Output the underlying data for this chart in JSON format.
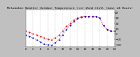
{
  "title": "Milwaukee Weather Outdoor Temperature (vs) Wind Chill (Last 24 Hours)",
  "title_fontsize": 3.2,
  "bg_color": "#c0c0c0",
  "plot_bg_color": "#ffffff",
  "grid_color": "#888888",
  "temp_color": "#ff0000",
  "windchill_color": "#0000cc",
  "ylim": [
    -25,
    45
  ],
  "ytick_right": [
    40,
    30,
    20,
    10,
    0,
    -10,
    -20
  ],
  "ylabel_fontsize": 3.0,
  "xlabel_fontsize": 2.8,
  "hours": [
    0,
    1,
    2,
    3,
    4,
    5,
    6,
    7,
    8,
    9,
    10,
    11,
    12,
    13,
    14,
    15,
    16,
    17,
    18,
    19,
    20,
    21,
    22,
    23,
    24
  ],
  "temp": [
    5,
    3,
    0,
    -2,
    -5,
    -8,
    -10,
    -12,
    -8,
    -3,
    5,
    14,
    20,
    26,
    30,
    32,
    33,
    33,
    33,
    32,
    30,
    15,
    8,
    5,
    5
  ],
  "windchill": [
    -2,
    -5,
    -8,
    -12,
    -16,
    -19,
    -21,
    -22,
    -17,
    -11,
    -2,
    8,
    16,
    23,
    28,
    31,
    33,
    33,
    33,
    32,
    30,
    15,
    8,
    5,
    5
  ]
}
